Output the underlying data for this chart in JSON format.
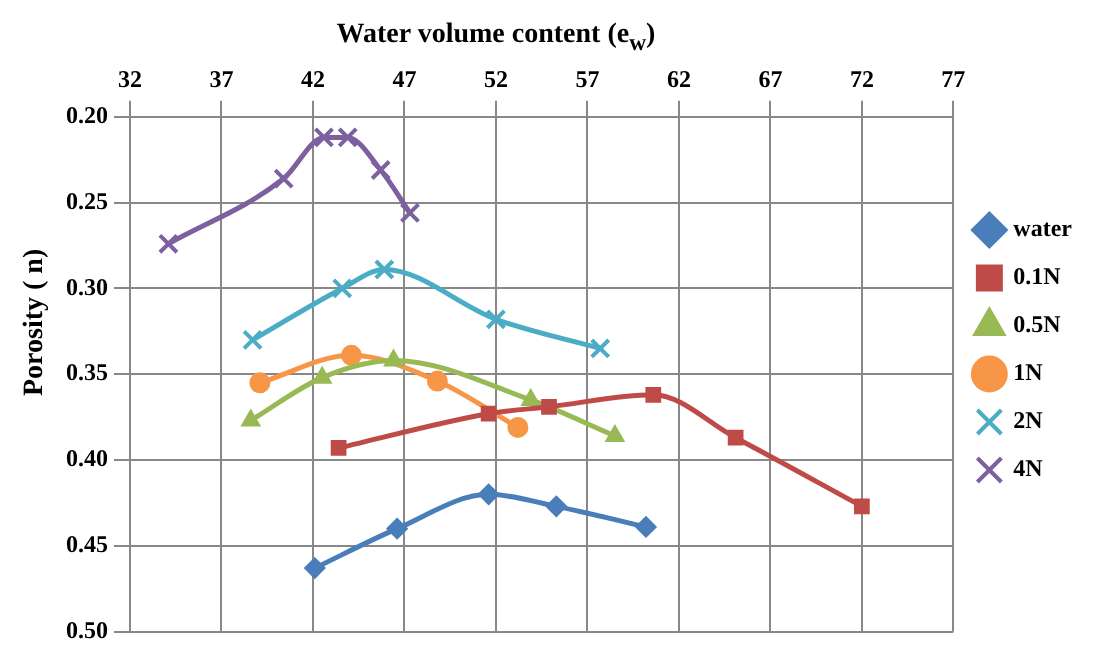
{
  "chart_data": {
    "type": "line",
    "xlabel": "Water volume content (e$_{w}$)",
    "ylabel": "Porosity ( n)",
    "xlim": [
      32,
      77
    ],
    "xticks": [
      32,
      37,
      42,
      47,
      52,
      57,
      62,
      67,
      72,
      77
    ],
    "ylim": [
      0.5,
      0.2
    ],
    "yticks": [
      {
        "value": 0.2,
        "label": "0.20"
      },
      {
        "value": 0.25,
        "label": "0.25"
      },
      {
        "value": 0.3,
        "label": "0.30"
      },
      {
        "value": 0.35,
        "label": "0.35"
      },
      {
        "value": 0.4,
        "label": "0.40"
      },
      {
        "value": 0.45,
        "label": "0.45"
      },
      {
        "value": 0.5,
        "label": "0.50"
      }
    ],
    "grid": true,
    "legend": "right",
    "series": [
      {
        "name": "water",
        "color": "#4a7ebb",
        "marker": "diamond",
        "x": [
          42.1,
          46.6,
          51.6,
          55.3,
          60.2
        ],
        "values": [
          0.463,
          0.44,
          0.42,
          0.427,
          0.439
        ]
      },
      {
        "name": "0.1N",
        "color": "#be4b48",
        "marker": "square",
        "x": [
          43.4,
          51.6,
          54.9,
          60.6,
          65.1,
          72
        ],
        "values": [
          0.393,
          0.373,
          0.369,
          0.362,
          0.387,
          0.427
        ]
      },
      {
        "name": "0.5N",
        "color": "#98b954",
        "marker": "triangle",
        "x": [
          38.6,
          42.5,
          46.4,
          53.9,
          58.5
        ],
        "values": [
          0.377,
          0.352,
          0.342,
          0.365,
          0.386
        ]
      },
      {
        "name": "1N",
        "color": "#f79646",
        "marker": "circle",
        "x": [
          39.1,
          44.1,
          48.8,
          53.2
        ],
        "values": [
          0.355,
          0.339,
          0.354,
          0.381
        ]
      },
      {
        "name": "2N",
        "color": "#4bacc6",
        "marker": "cross",
        "x": [
          38.7,
          43.6,
          45.9,
          52,
          57.7
        ],
        "values": [
          0.33,
          0.3,
          0.289,
          0.318,
          0.335
        ]
      },
      {
        "name": "4N",
        "color": "#7d60a0",
        "marker": "cross",
        "x": [
          34.1,
          40.4,
          42.6,
          43.9,
          45.7,
          47.3
        ],
        "values": [
          0.274,
          0.236,
          0.212,
          0.212,
          0.231,
          0.256
        ]
      }
    ]
  }
}
